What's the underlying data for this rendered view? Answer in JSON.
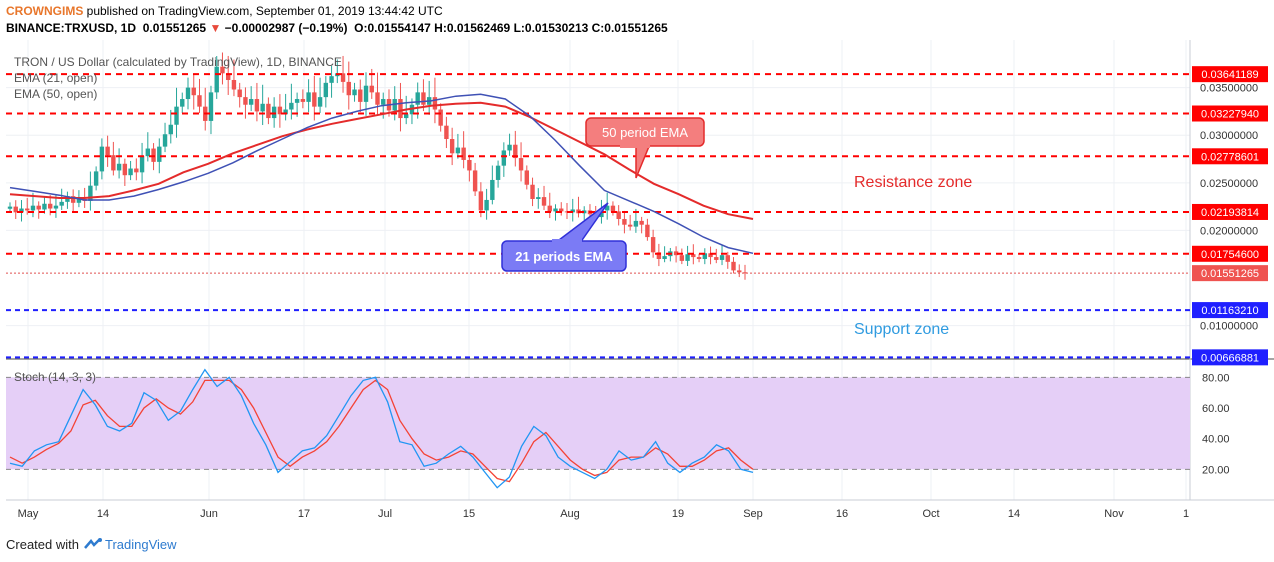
{
  "header": {
    "author": "CROWNGIMS",
    "published": " published on TradingView.com, September 01, 2019 13:44:42 UTC",
    "symbol": "BINANCE:TRXUSD, 1D",
    "price": "0.01551265",
    "change_arrow": "▼",
    "change": "−0.00002987 (−0.19%)",
    "ohlc": "O:0.01554147 H:0.01562469 L:0.01530213 C:0.01551265"
  },
  "legend": {
    "title": "TRON / US Dollar (calculated by TradingView), 1D, BINANCE",
    "ema21": "EMA (21, open)",
    "ema50": "EMA (50, open)",
    "stoch": "Stoch (14, 3, 3)"
  },
  "annotations": {
    "ema50_label": "50 period EMA",
    "ema21_label": "21 periods EMA",
    "resistance": "Resistance zone",
    "support": "Support zone"
  },
  "footer": {
    "created_with": "Created with",
    "brand": "TradingView"
  },
  "colors": {
    "up": "#26a69a",
    "down": "#ef5350",
    "ema21": "#3f51b5",
    "ema50": "#e42b2b",
    "level": "#ff0000",
    "support": "#1f1fff",
    "stoch_k": "#2196f3",
    "stoch_d": "#f44336",
    "stoch_bg": "#e5cff7",
    "res_text": "#e42b2b",
    "sup_text": "#2f9be0"
  },
  "chart_data": {
    "type": "candlestick",
    "price_axis": {
      "min": 0.0066,
      "max": 0.04,
      "ticks": [
        "0.03500000",
        "0.03000000",
        "0.02500000",
        "0.02000000",
        "0.01000000"
      ]
    },
    "x_ticks": [
      "May",
      "14",
      "Jun",
      "17",
      "Jul",
      "15",
      "Aug",
      "19",
      "Sep",
      "16",
      "Oct",
      "14",
      "Nov",
      "1"
    ],
    "levels": [
      {
        "value": 0.03641189,
        "label": "0.03641189",
        "kind": "resistance"
      },
      {
        "value": 0.0322794,
        "label": "0.03227940",
        "kind": "resistance"
      },
      {
        "value": 0.02778601,
        "label": "0.02778601",
        "kind": "resistance"
      },
      {
        "value": 0.02193814,
        "label": "0.02193814",
        "kind": "resistance"
      },
      {
        "value": 0.017546,
        "label": "0.01754600",
        "kind": "resistance"
      },
      {
        "value": 0.01551265,
        "label": "0.01551265",
        "kind": "last"
      },
      {
        "value": 0.0116321,
        "label": "0.01163210",
        "kind": "support"
      },
      {
        "value": 0.00666881,
        "label": "0.00666881",
        "kind": "support"
      }
    ],
    "closes": [
      0.0225,
      0.0219,
      0.0223,
      0.0221,
      0.0226,
      0.0222,
      0.0228,
      0.0223,
      0.0226,
      0.023,
      0.0236,
      0.0229,
      0.0233,
      0.0231,
      0.0247,
      0.0262,
      0.0288,
      0.0279,
      0.0263,
      0.027,
      0.0258,
      0.0265,
      0.0261,
      0.0278,
      0.0286,
      0.0272,
      0.0288,
      0.0301,
      0.0311,
      0.033,
      0.0338,
      0.035,
      0.0342,
      0.033,
      0.0315,
      0.0345,
      0.0372,
      0.0365,
      0.0358,
      0.0348,
      0.034,
      0.0332,
      0.0338,
      0.0325,
      0.0333,
      0.0318,
      0.033,
      0.0322,
      0.0327,
      0.0334,
      0.0338,
      0.0335,
      0.0345,
      0.033,
      0.034,
      0.0355,
      0.0362,
      0.0365,
      0.0356,
      0.0342,
      0.0348,
      0.0335,
      0.0352,
      0.0345,
      0.0332,
      0.0338,
      0.0326,
      0.0338,
      0.0318,
      0.0322,
      0.0332,
      0.0345,
      0.0332,
      0.034,
      0.0327,
      0.031,
      0.0296,
      0.0281,
      0.0287,
      0.0274,
      0.0263,
      0.0241,
      0.0221,
      0.0232,
      0.0253,
      0.0268,
      0.0284,
      0.029,
      0.0276,
      0.0263,
      0.0248,
      0.0233,
      0.0235,
      0.0226,
      0.022,
      0.0223,
      0.022,
      0.0219,
      0.0222,
      0.0218,
      0.0221,
      0.0217,
      0.0214,
      0.0221,
      0.0226,
      0.022,
      0.0212,
      0.0206,
      0.0204,
      0.021,
      0.0206,
      0.0193,
      0.0177,
      0.017,
      0.0173,
      0.0178,
      0.0174,
      0.0168,
      0.0175,
      0.0172,
      0.017,
      0.0176,
      0.0172,
      0.0169,
      0.0174,
      0.0167,
      0.0158,
      0.0156,
      0.0155
    ],
    "ema21": [
      0.0245,
      0.0241,
      0.0237,
      0.0232,
      0.0232,
      0.0236,
      0.0243,
      0.0251,
      0.026,
      0.0271,
      0.0284,
      0.0296,
      0.0308,
      0.0318,
      0.0325,
      0.0331,
      0.0334,
      0.0336,
      0.0341,
      0.0343,
      0.0338,
      0.032,
      0.0295,
      0.0268,
      0.0242,
      0.0231,
      0.022,
      0.0207,
      0.0193,
      0.0182,
      0.0176
    ],
    "ema50": [
      0.0238,
      0.0236,
      0.0234,
      0.0234,
      0.0236,
      0.0242,
      0.0249,
      0.0261,
      0.027,
      0.0281,
      0.029,
      0.0299,
      0.0306,
      0.0312,
      0.0317,
      0.0322,
      0.0327,
      0.0331,
      0.0333,
      0.0334,
      0.033,
      0.0319,
      0.0306,
      0.0293,
      0.028,
      0.0264,
      0.0249,
      0.0238,
      0.0226,
      0.0217,
      0.0212
    ],
    "stoch": {
      "axis": {
        "min": 0,
        "max": 90,
        "ticks": [
          "80.00",
          "60.00",
          "40.00",
          "20.00"
        ],
        "band": [
          20,
          80
        ]
      },
      "k": [
        24,
        22,
        32,
        36,
        38,
        55,
        72,
        62,
        48,
        45,
        50,
        70,
        65,
        52,
        58,
        72,
        85,
        74,
        80,
        68,
        50,
        36,
        18,
        25,
        32,
        34,
        42,
        55,
        68,
        78,
        80,
        64,
        38,
        36,
        22,
        24,
        30,
        35,
        28,
        18,
        8,
        15,
        35,
        48,
        42,
        28,
        22,
        18,
        14,
        20,
        32,
        26,
        28,
        38,
        24,
        18,
        24,
        28,
        36,
        32,
        20,
        18
      ],
      "d": [
        28,
        24,
        28,
        33,
        37,
        45,
        62,
        65,
        55,
        48,
        48,
        60,
        66,
        60,
        56,
        64,
        78,
        78,
        78,
        72,
        60,
        44,
        28,
        22,
        28,
        32,
        38,
        48,
        60,
        72,
        78,
        72,
        52,
        40,
        30,
        26,
        28,
        32,
        30,
        22,
        14,
        12,
        24,
        38,
        44,
        35,
        26,
        20,
        16,
        18,
        26,
        28,
        28,
        34,
        30,
        22,
        22,
        26,
        32,
        34,
        26,
        20
      ]
    }
  }
}
